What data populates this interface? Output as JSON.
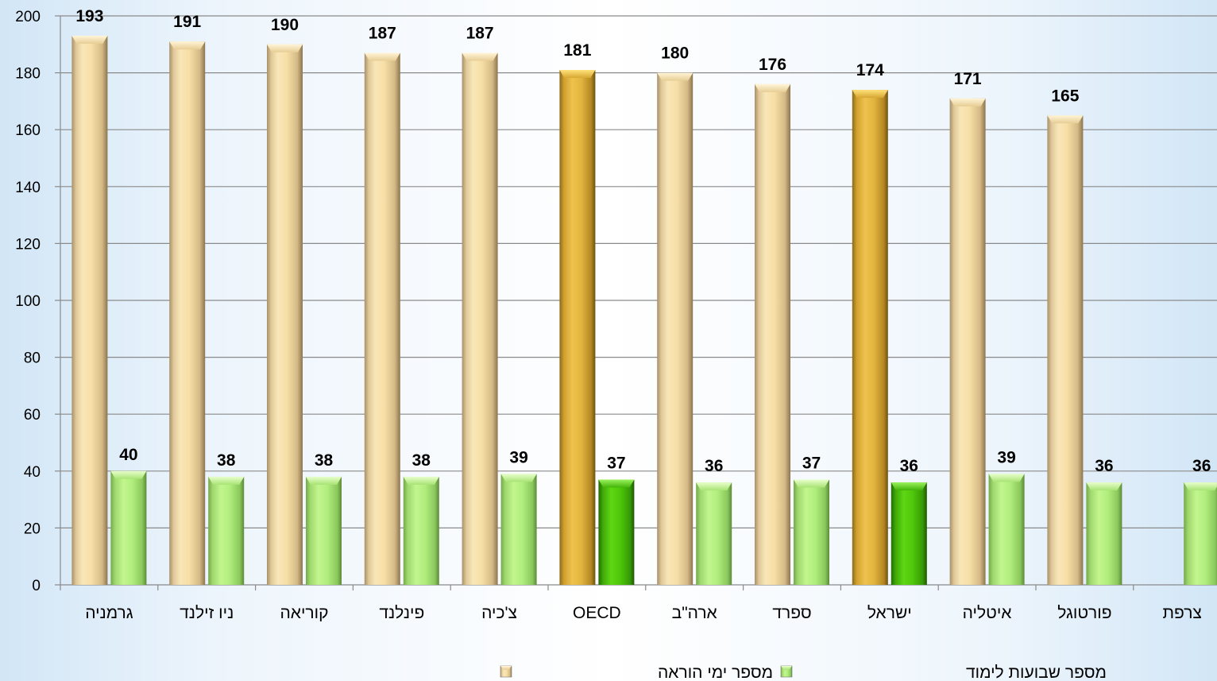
{
  "chart_data": {
    "type": "bar",
    "categories": [
      "גרמניה",
      "ניו זילנד",
      "קוריאה",
      "פינלנד",
      "צ'כיה",
      "OECD",
      "ארה\"ב",
      "ספרד",
      "ישראל",
      "איטליה",
      "פורטוגל",
      "צרפת"
    ],
    "series": [
      {
        "name": "מספר ימי הוראה",
        "values": [
          193,
          191,
          190,
          187,
          187,
          181,
          180,
          176,
          174,
          171,
          165,
          null
        ],
        "color": "#f5dea4",
        "highlight_color": "#e2b53e"
      },
      {
        "name": "מספר שבועות לימוד",
        "values": [
          40,
          38,
          38,
          38,
          39,
          37,
          36,
          37,
          36,
          39,
          36,
          36
        ],
        "color": "#b3f07e",
        "highlight_color": "#4fc80a"
      }
    ],
    "highlighted_categories": [
      "OECD",
      "ישראל"
    ],
    "ylim": [
      0,
      200
    ],
    "yticks": [
      0,
      20,
      40,
      60,
      80,
      100,
      120,
      140,
      160,
      180,
      200
    ],
    "grid": true,
    "legend_position": "bottom"
  }
}
